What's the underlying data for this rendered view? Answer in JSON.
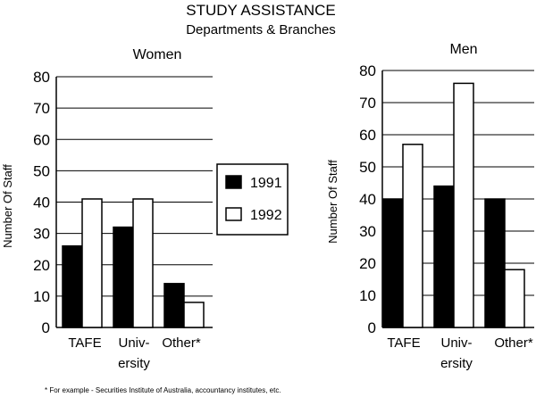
{
  "title": "STUDY ASSISTANCE",
  "subtitle": "Departments & Branches",
  "legend": [
    {
      "label": "1991",
      "color": "#000000"
    },
    {
      "label": "1992",
      "color": "#ffffff"
    }
  ],
  "footnote": "* For example - Securities Institute of Australia, accountancy institutes, etc.",
  "chart_data": [
    {
      "type": "bar",
      "title": "Women",
      "ylabel": "Number Of Staff",
      "xlabel": "",
      "categories": [
        [
          "TAFE"
        ],
        [
          "Univ-",
          "ersity"
        ],
        [
          "Other*"
        ]
      ],
      "series": [
        {
          "name": "1991",
          "values": [
            26,
            32,
            14
          ]
        },
        {
          "name": "1992",
          "values": [
            41,
            41,
            8
          ]
        }
      ],
      "ylim": [
        0,
        80
      ],
      "yticks": [
        0,
        10,
        20,
        30,
        40,
        50,
        60,
        70,
        80
      ],
      "grid": true
    },
    {
      "type": "bar",
      "title": "Men",
      "ylabel": "Number Of Staff",
      "xlabel": "",
      "categories": [
        [
          "TAFE"
        ],
        [
          "Univ-",
          "ersity"
        ],
        [
          "Other*"
        ]
      ],
      "series": [
        {
          "name": "1991",
          "values": [
            40,
            44,
            40
          ]
        },
        {
          "name": "1992",
          "values": [
            57,
            76,
            18
          ]
        }
      ],
      "ylim": [
        0,
        80
      ],
      "yticks": [
        0,
        10,
        20,
        30,
        40,
        50,
        60,
        70,
        80
      ],
      "grid": true
    }
  ]
}
